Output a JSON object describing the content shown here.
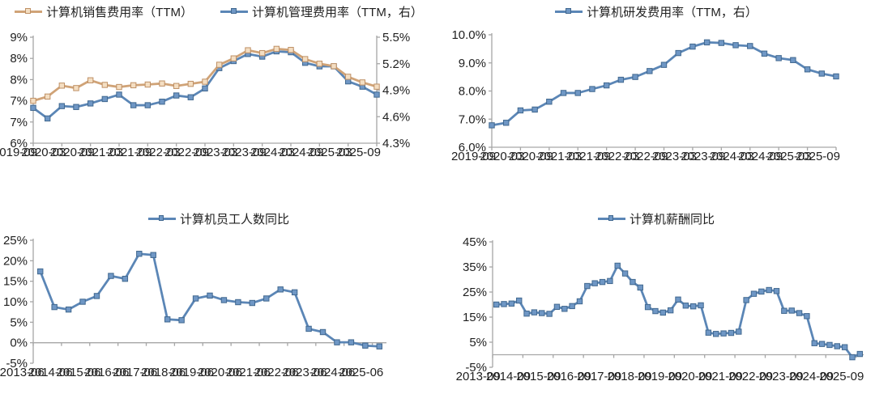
{
  "page": {
    "background": "#ffffff"
  },
  "colors": {
    "tan_line": "#D0A377",
    "tan_fill": "#F4DEC2",
    "tan_stroke": "#BE9065",
    "blue_line": "#5B86B6",
    "blue_fill": "#6F97C5",
    "blue_stroke": "#41688F",
    "axis": "#A6A6A6",
    "text": "#1F1F1F"
  },
  "chart_data": [
    {
      "type": "line",
      "position": "top-left",
      "legend_position": "top",
      "grid": false,
      "x_tick_labels": [
        "2019-09",
        "2020-03",
        "2020-09",
        "2021-03",
        "2021-09",
        "2022-03",
        "2022-09",
        "2023-03",
        "2023-09",
        "2024-03",
        "2024-09",
        "2025-03",
        "2025-09"
      ],
      "y_axis_left": {
        "tick_labels": [
          "9%",
          "8%",
          "8%",
          "7%",
          "7%",
          "6%"
        ],
        "min": 6,
        "max": 9
      },
      "y_axis_right": {
        "tick_labels": [
          "5.5%",
          "5.2%",
          "4.9%",
          "4.6%",
          "4.3%"
        ],
        "min": 4.3,
        "max": 5.5
      },
      "series": [
        {
          "name": "计算机销售费用率（TTM）",
          "axis": "left",
          "color_key": "tan",
          "values": [
            7.2,
            7.32,
            7.63,
            7.56,
            7.78,
            7.65,
            7.59,
            7.64,
            7.66,
            7.69,
            7.62,
            7.68,
            7.74,
            8.22,
            8.4,
            8.63,
            8.55,
            8.67,
            8.64,
            8.38,
            8.25,
            8.18,
            7.88,
            7.72,
            7.6
          ]
        },
        {
          "name": "计算机管理费用率（TTM，右）",
          "axis": "right",
          "color_key": "blue",
          "values": [
            4.7,
            4.58,
            4.72,
            4.71,
            4.75,
            4.8,
            4.85,
            4.73,
            4.73,
            4.77,
            4.84,
            4.82,
            4.92,
            5.15,
            5.23,
            5.31,
            5.28,
            5.34,
            5.33,
            5.21,
            5.17,
            5.17,
            5.0,
            4.94,
            4.85
          ]
        }
      ]
    },
    {
      "type": "line",
      "position": "top-right",
      "legend_position": "top",
      "grid": false,
      "x_tick_labels": [
        "2019-09",
        "2020-03",
        "2020-09",
        "2021-03",
        "2021-09",
        "2022-03",
        "2022-09",
        "2023-03",
        "2023-09",
        "2024-03",
        "2024-09",
        "2025-03",
        "2025-09"
      ],
      "y_axis_left": {
        "tick_labels": [
          "10.0%",
          "9.0%",
          "8.0%",
          "7.0%",
          "6.0%"
        ],
        "min": 6,
        "max": 10
      },
      "series": [
        {
          "name": "计算机研发费用率（TTM，右）",
          "axis": "left",
          "color_key": "blue",
          "values": [
            6.78,
            6.87,
            7.31,
            7.34,
            7.62,
            7.93,
            7.93,
            8.07,
            8.2,
            8.4,
            8.5,
            8.71,
            8.93,
            9.35,
            9.58,
            9.73,
            9.71,
            9.63,
            9.6,
            9.33,
            9.17,
            9.1,
            8.77,
            8.62,
            8.52
          ]
        }
      ]
    },
    {
      "type": "line",
      "position": "bottom-left",
      "legend_position": "top",
      "grid": false,
      "axis_crosses_at_zero": true,
      "x_tick_labels": [
        "2013-06",
        "2014-06",
        "2015-06",
        "2016-06",
        "2017-06",
        "2018-06",
        "2019-06",
        "2020-06",
        "2021-06",
        "2022-06",
        "2023-06",
        "2024-06",
        "2025-06"
      ],
      "y_axis_left": {
        "tick_labels": [
          "25%",
          "20%",
          "15%",
          "10%",
          "5%",
          "0%",
          "-5%"
        ],
        "min": -5,
        "max": 25
      },
      "series": [
        {
          "name": "计算机员工人数同比",
          "axis": "left",
          "color_key": "blue",
          "values": [
            17.4,
            8.7,
            8.1,
            10.0,
            11.4,
            16.3,
            15.6,
            21.7,
            21.4,
            5.7,
            5.5,
            10.8,
            11.5,
            10.4,
            9.9,
            9.7,
            10.8,
            13.0,
            12.3,
            3.4,
            2.6,
            0.1,
            0.1,
            -0.7,
            -0.9
          ]
        }
      ]
    },
    {
      "type": "line",
      "position": "bottom-right",
      "legend_position": "top",
      "grid": false,
      "axis_crosses_at_zero": true,
      "x_tick_labels": [
        "2013-09",
        "2014-09",
        "2015-09",
        "2016-09",
        "2017-09",
        "2018-09",
        "2019-09",
        "2020-09",
        "2021-09",
        "2022-09",
        "2023-09",
        "2024-09",
        "2025-09"
      ],
      "y_axis_left": {
        "tick_labels": [
          "45%",
          "35%",
          "25%",
          "15%",
          "5%",
          "-5%"
        ],
        "min": -5,
        "max": 45
      },
      "series": [
        {
          "name": "计算机薪酬同比",
          "axis": "left",
          "color_key": "blue",
          "values": [
            20.0,
            20.2,
            20.4,
            21.6,
            16.4,
            16.9,
            16.6,
            16.3,
            19.1,
            18.3,
            19.4,
            21.3,
            27.4,
            28.5,
            29.0,
            29.4,
            35.5,
            32.4,
            29.0,
            26.8,
            19.0,
            17.4,
            16.8,
            17.7,
            22.0,
            19.6,
            19.3,
            19.7,
            8.8,
            8.3,
            8.5,
            8.7,
            9.2,
            21.8,
            24.3,
            25.2,
            25.8,
            25.4,
            17.5,
            17.6,
            16.6,
            15.4,
            4.6,
            4.3,
            3.9,
            3.4,
            3.0,
            -1.0,
            0.3
          ]
        }
      ]
    }
  ]
}
